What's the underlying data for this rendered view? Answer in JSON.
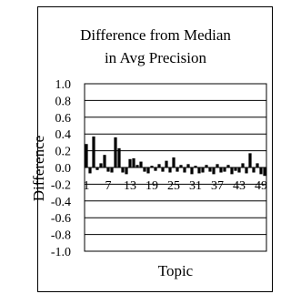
{
  "chart_data": {
    "type": "bar",
    "title": "Difference from Median",
    "subtitle": "in Avg Precision",
    "xlabel": "Topic",
    "ylabel": "Difference",
    "ylim": [
      -1.0,
      1.0
    ],
    "y_ticks": [
      "1.0",
      "0.8",
      "0.6",
      "0.4",
      "0.2",
      "0.0",
      "-0.2",
      "-0.4",
      "-0.6",
      "-0.8",
      "-1.0"
    ],
    "x_tick_labels": [
      "1",
      "7",
      "13",
      "19",
      "25",
      "31",
      "37",
      "43",
      "49"
    ],
    "grid": true,
    "bar_color": "#000000",
    "categories": [
      "1",
      "2",
      "3",
      "4",
      "5",
      "6",
      "7",
      "8",
      "9",
      "10",
      "11",
      "12",
      "13",
      "14",
      "15",
      "16",
      "17",
      "18",
      "19",
      "20",
      "21",
      "22",
      "23",
      "24",
      "25",
      "26",
      "27",
      "28",
      "29",
      "30",
      "31",
      "32",
      "33",
      "34",
      "35",
      "36",
      "37",
      "38",
      "39",
      "40",
      "41",
      "42",
      "43",
      "44",
      "45",
      "46",
      "47",
      "48",
      "49",
      "50"
    ],
    "values": [
      0.28,
      -0.07,
      0.37,
      -0.03,
      0.05,
      0.15,
      -0.05,
      -0.06,
      0.36,
      0.23,
      -0.06,
      -0.08,
      0.1,
      0.11,
      0.03,
      0.07,
      -0.05,
      -0.07,
      0.02,
      -0.04,
      0.04,
      -0.05,
      0.08,
      -0.06,
      0.12,
      -0.05,
      0.03,
      -0.06,
      0.04,
      -0.08,
      0.02,
      -0.07,
      -0.06,
      0.03,
      -0.05,
      -0.08,
      0.04,
      -0.06,
      -0.05,
      0.03,
      -0.08,
      -0.04,
      -0.06,
      0.05,
      -0.07,
      0.17,
      -0.06,
      0.05,
      -0.08,
      -0.1
    ]
  }
}
